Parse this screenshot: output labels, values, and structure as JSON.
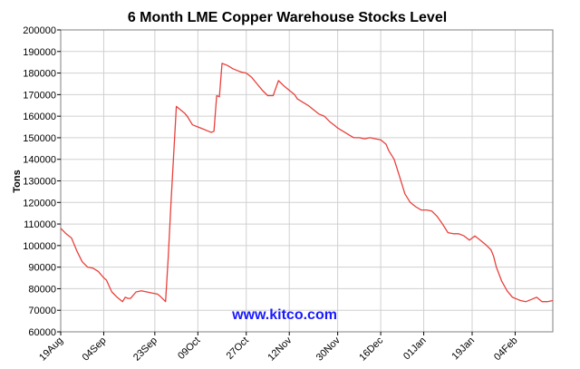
{
  "colors": {
    "line": "#e8413c",
    "grid": "#d0d0d0",
    "axis": "#000000",
    "watermark": "#1a1aff",
    "background": "#ffffff"
  },
  "chart_data": {
    "type": "line",
    "title": "6 Month LME Copper Warehouse Stocks Level",
    "ylabel": "Tons",
    "xlabel": "",
    "watermark": "www.kitco.com",
    "ylim": [
      60000,
      200000
    ],
    "y_ticks": [
      {
        "value": 60000,
        "label": "60000"
      },
      {
        "value": 70000,
        "label": "70000"
      },
      {
        "value": 80000,
        "label": "80000"
      },
      {
        "value": 90000,
        "label": "90000"
      },
      {
        "value": 100000,
        "label": "100000"
      },
      {
        "value": 110000,
        "label": "110000"
      },
      {
        "value": 120000,
        "label": "120000"
      },
      {
        "value": 130000,
        "label": "130000"
      },
      {
        "value": 140000,
        "label": "140000"
      },
      {
        "value": 150000,
        "label": "150000"
      },
      {
        "value": 160000,
        "label": "160000"
      },
      {
        "value": 170000,
        "label": "170000"
      },
      {
        "value": 180000,
        "label": "180000"
      },
      {
        "value": 190000,
        "label": "190000"
      },
      {
        "value": 200000,
        "label": "200000"
      }
    ],
    "xlim": [
      "19Aug",
      "18Feb"
    ],
    "x_ticks": [
      {
        "date": "19Aug",
        "label": "19Aug"
      },
      {
        "date": "04Sep",
        "label": "04Sep"
      },
      {
        "date": "23Sep",
        "label": "23Sep"
      },
      {
        "date": "09Oct",
        "label": "09Oct"
      },
      {
        "date": "27Oct",
        "label": "27Oct"
      },
      {
        "date": "12Nov",
        "label": "12Nov"
      },
      {
        "date": "30Nov",
        "label": "30Nov"
      },
      {
        "date": "16Dec",
        "label": "16Dec"
      },
      {
        "date": "01Jan",
        "label": "01Jan"
      },
      {
        "date": "19Jan",
        "label": "19Jan"
      },
      {
        "date": "04Feb",
        "label": "04Feb"
      }
    ],
    "grid": true,
    "series": [
      {
        "x": [
          "19Aug",
          "21Aug",
          "23Aug",
          "25Aug",
          "27Aug",
          "29Aug",
          "31Aug",
          "02Sep",
          "04Sep",
          "05Sep",
          "07Sep",
          "09Sep",
          "11Sep",
          "12Sep",
          "13Sep",
          "14Sep",
          "16Sep",
          "18Sep",
          "20Sep",
          "22Sep",
          "24Sep",
          "25Sep",
          "27Sep",
          "28Sep",
          "29Sep",
          "01Oct",
          "03Oct",
          "04Oct",
          "05Oct",
          "07Oct",
          "09Oct",
          "11Oct",
          "13Oct",
          "14Oct",
          "15Oct",
          "16Oct",
          "17Oct",
          "18Oct",
          "20Oct",
          "22Oct",
          "24Oct",
          "25Oct",
          "27Oct",
          "29Oct",
          "31Oct",
          "02Nov",
          "04Nov",
          "06Nov",
          "08Nov",
          "10Nov",
          "12Nov",
          "14Nov",
          "15Nov",
          "17Nov",
          "19Nov",
          "21Nov",
          "23Nov",
          "25Nov",
          "27Nov",
          "29Nov",
          "30Nov",
          "02Dec",
          "04Dec",
          "06Dec",
          "08Dec",
          "10Dec",
          "12Dec",
          "14Dec",
          "16Dec",
          "18Dec",
          "19Dec",
          "21Dec",
          "23Dec",
          "25Dec",
          "27Dec",
          "29Dec",
          "31Dec",
          "02Jan",
          "04Jan",
          "06Jan",
          "08Jan",
          "10Jan",
          "12Jan",
          "14Jan",
          "16Jan",
          "18Jan",
          "20Jan",
          "22Jan",
          "24Jan",
          "26Jan",
          "27Jan",
          "28Jan",
          "30Jan",
          "01Feb",
          "03Feb",
          "05Feb",
          "06Feb",
          "08Feb",
          "10Feb",
          "12Feb",
          "14Feb",
          "16Feb",
          "18Feb"
        ],
        "y": [
          108000,
          105500,
          103500,
          97500,
          92500,
          90000,
          89500,
          88000,
          85000,
          84000,
          78500,
          76000,
          74000,
          76000,
          75500,
          75500,
          78500,
          79000,
          78500,
          78000,
          77500,
          76500,
          74000,
          95000,
          120000,
          164500,
          162500,
          161500,
          160000,
          156000,
          155000,
          154000,
          153000,
          152500,
          153000,
          169500,
          169000,
          184500,
          183500,
          182000,
          181000,
          180500,
          180000,
          178000,
          175000,
          172000,
          169500,
          169500,
          176500,
          174000,
          172000,
          170000,
          168000,
          166500,
          165000,
          163000,
          161000,
          160000,
          157500,
          155500,
          154500,
          153000,
          151500,
          150000,
          150000,
          149500,
          150000,
          149500,
          149000,
          147000,
          144000,
          140000,
          132000,
          124000,
          120000,
          118000,
          116500,
          116500,
          116000,
          113500,
          110000,
          106000,
          105500,
          105500,
          104500,
          102500,
          104500,
          102500,
          100500,
          98000,
          95000,
          90000,
          83500,
          79000,
          76000,
          75000,
          74500,
          74000,
          75000,
          76000,
          74000,
          74000,
          74500
        ]
      }
    ]
  }
}
